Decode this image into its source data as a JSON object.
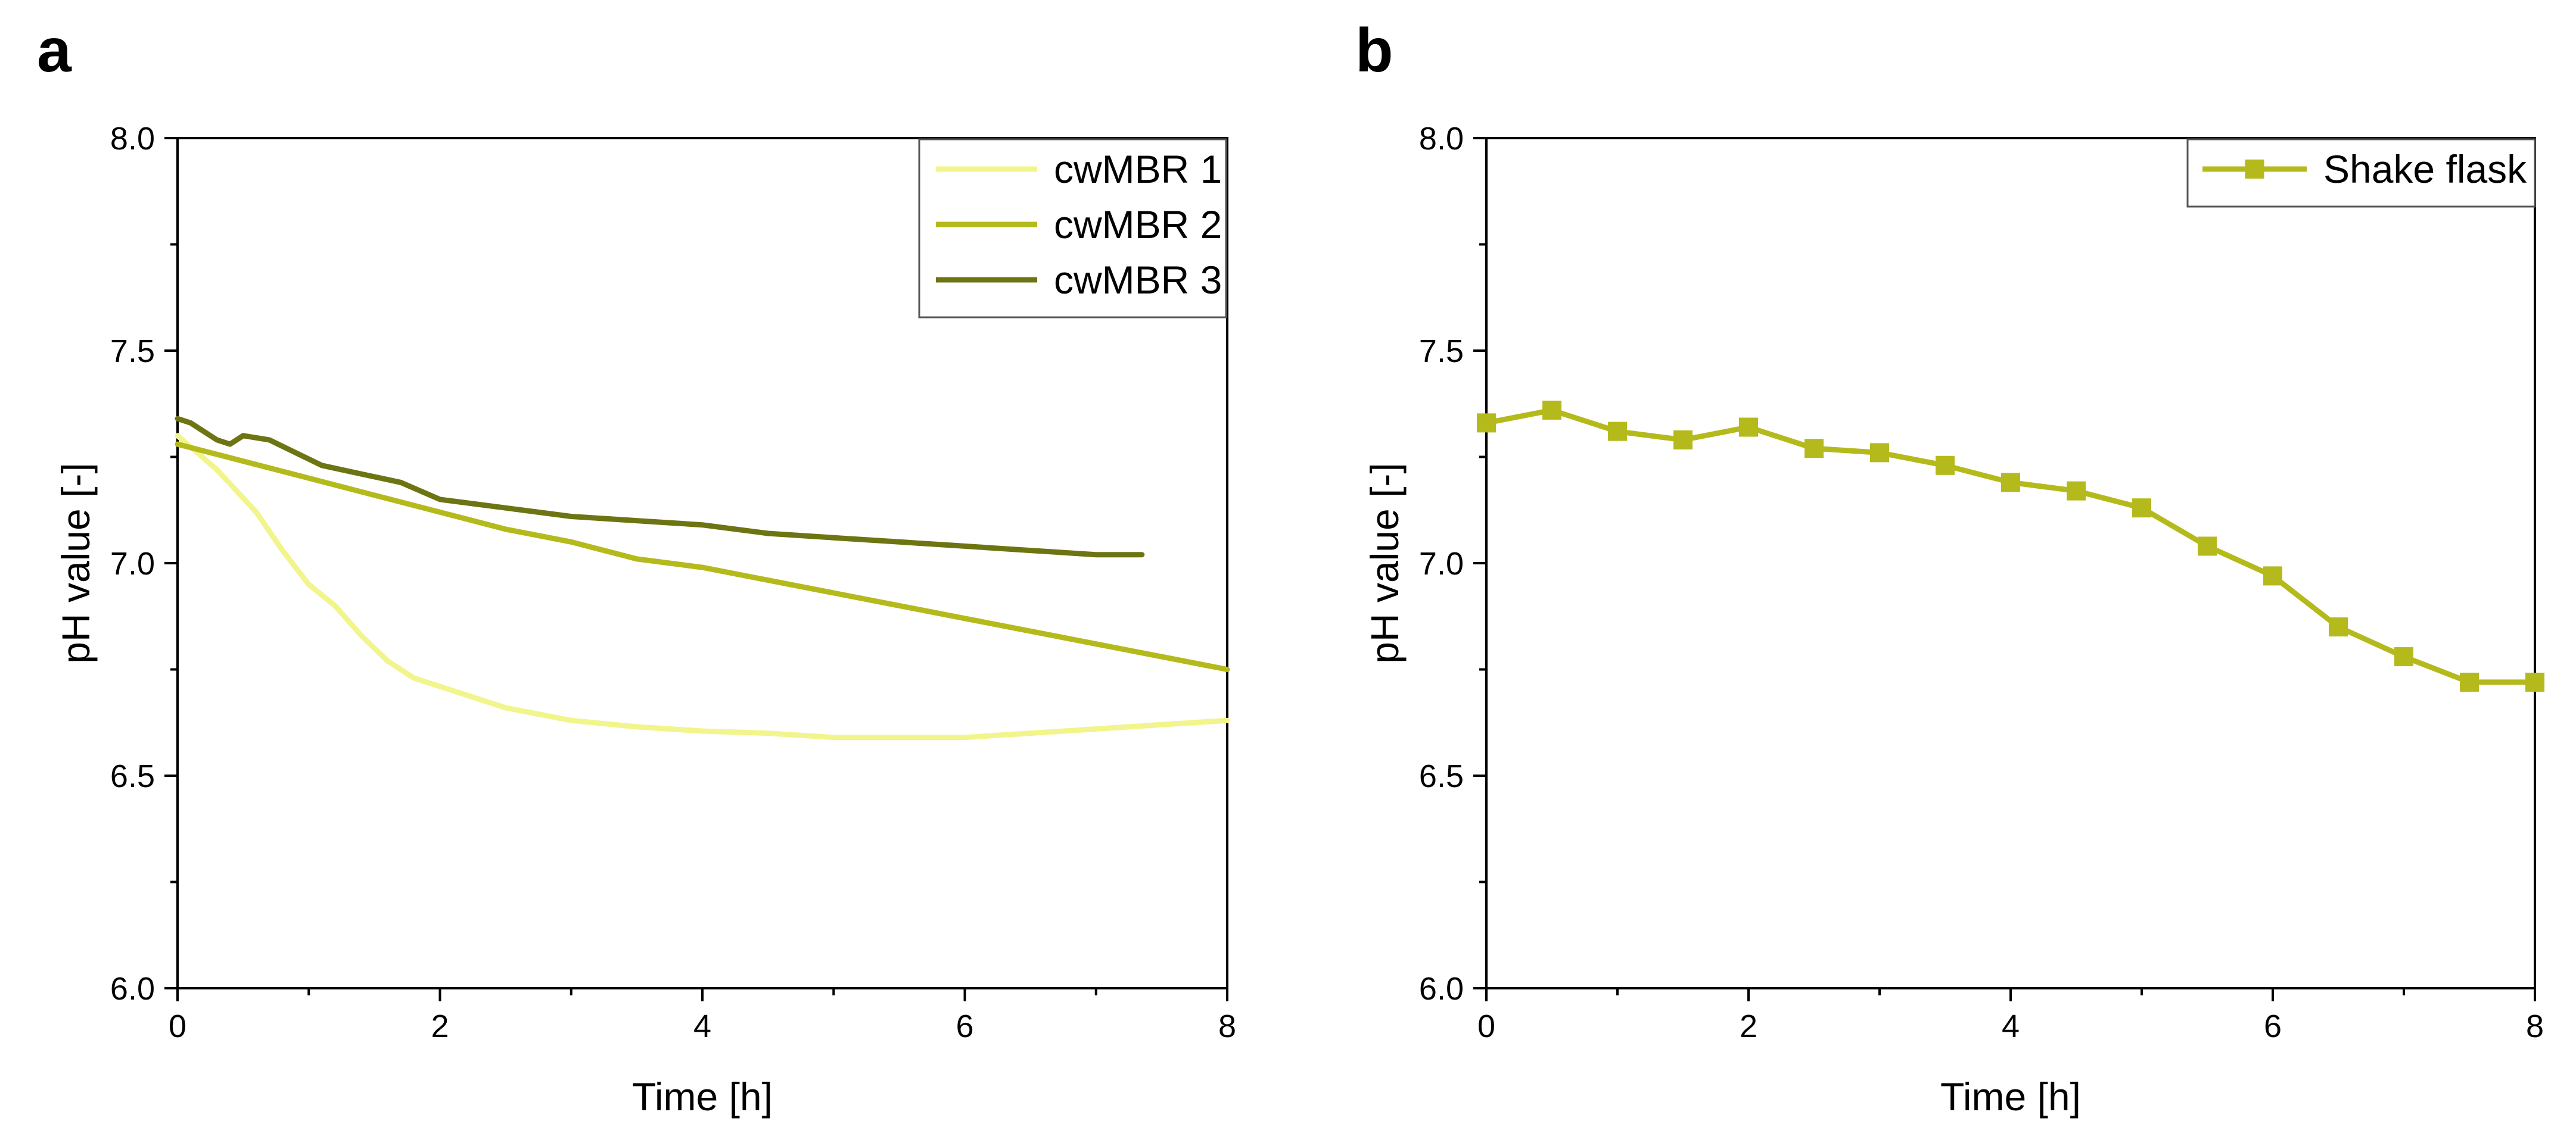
{
  "panels": [
    {
      "label": "a"
    },
    {
      "label": "b"
    }
  ],
  "chart_data": [
    {
      "type": "line",
      "xlabel": "Time [h]",
      "ylabel": "pH value [-]",
      "xlim": [
        0,
        8
      ],
      "ylim": [
        6.0,
        8.0
      ],
      "xticks": [
        "0",
        "2",
        "4",
        "6",
        "8"
      ],
      "yticks": [
        "6.0",
        "6.5",
        "7.0",
        "7.5",
        "8.0"
      ],
      "grid": false,
      "legend_position": "top-right",
      "series": [
        {
          "name": "cwMBR 1",
          "color": "#f1f58c",
          "x": [
            0,
            0.3,
            0.6,
            0.8,
            1.0,
            1.2,
            1.4,
            1.6,
            1.8,
            2.0,
            2.5,
            3.0,
            3.5,
            4.0,
            4.5,
            5.0,
            5.5,
            6.0,
            6.5,
            7.0,
            7.5,
            8.0
          ],
          "y": [
            7.3,
            7.22,
            7.12,
            7.03,
            6.95,
            6.9,
            6.83,
            6.77,
            6.73,
            6.71,
            6.66,
            6.63,
            6.615,
            6.605,
            6.6,
            6.59,
            6.59,
            6.59,
            6.6,
            6.61,
            6.62,
            6.63
          ]
        },
        {
          "name": "cwMBR 2",
          "color": "#b5ba1c",
          "x": [
            0,
            0.5,
            1.0,
            1.5,
            2.0,
            2.5,
            3.0,
            3.5,
            4.0,
            4.5,
            5.0,
            5.5,
            6.0,
            6.5,
            7.0,
            7.5,
            8.0
          ],
          "y": [
            7.28,
            7.24,
            7.2,
            7.16,
            7.12,
            7.08,
            7.05,
            7.01,
            6.99,
            6.96,
            6.93,
            6.9,
            6.87,
            6.84,
            6.81,
            6.78,
            6.75
          ]
        },
        {
          "name": "cwMBR 3",
          "color": "#6d7412",
          "x": [
            0,
            0.1,
            0.2,
            0.3,
            0.4,
            0.5,
            0.7,
            0.9,
            1.1,
            1.4,
            1.7,
            2.0,
            2.5,
            3.0,
            3.5,
            4.0,
            4.5,
            5.0,
            5.5,
            6.0,
            6.5,
            7.0,
            7.35
          ],
          "y": [
            7.34,
            7.33,
            7.31,
            7.29,
            7.28,
            7.3,
            7.29,
            7.26,
            7.23,
            7.21,
            7.19,
            7.15,
            7.13,
            7.11,
            7.1,
            7.09,
            7.07,
            7.06,
            7.05,
            7.04,
            7.03,
            7.02,
            7.02
          ]
        }
      ]
    },
    {
      "type": "line",
      "xlabel": "Time [h]",
      "ylabel": "pH value [-]",
      "xlim": [
        0,
        8
      ],
      "ylim": [
        6.0,
        8.0
      ],
      "xticks": [
        "0",
        "2",
        "4",
        "6",
        "8"
      ],
      "yticks": [
        "6.0",
        "6.5",
        "7.0",
        "7.5",
        "8.0"
      ],
      "grid": false,
      "legend_position": "top-right",
      "series": [
        {
          "name": "Shake flask",
          "color": "#b5ba1c",
          "marker": "square",
          "x": [
            0,
            0.5,
            1.0,
            1.5,
            2.0,
            2.5,
            3.0,
            3.5,
            4.0,
            4.5,
            5.0,
            5.5,
            6.0,
            6.5,
            7.0,
            7.5,
            8.0
          ],
          "y": [
            7.33,
            7.36,
            7.31,
            7.29,
            7.32,
            7.27,
            7.26,
            7.23,
            7.19,
            7.17,
            7.13,
            7.04,
            6.97,
            6.85,
            6.78,
            6.72,
            6.72
          ]
        }
      ]
    }
  ]
}
